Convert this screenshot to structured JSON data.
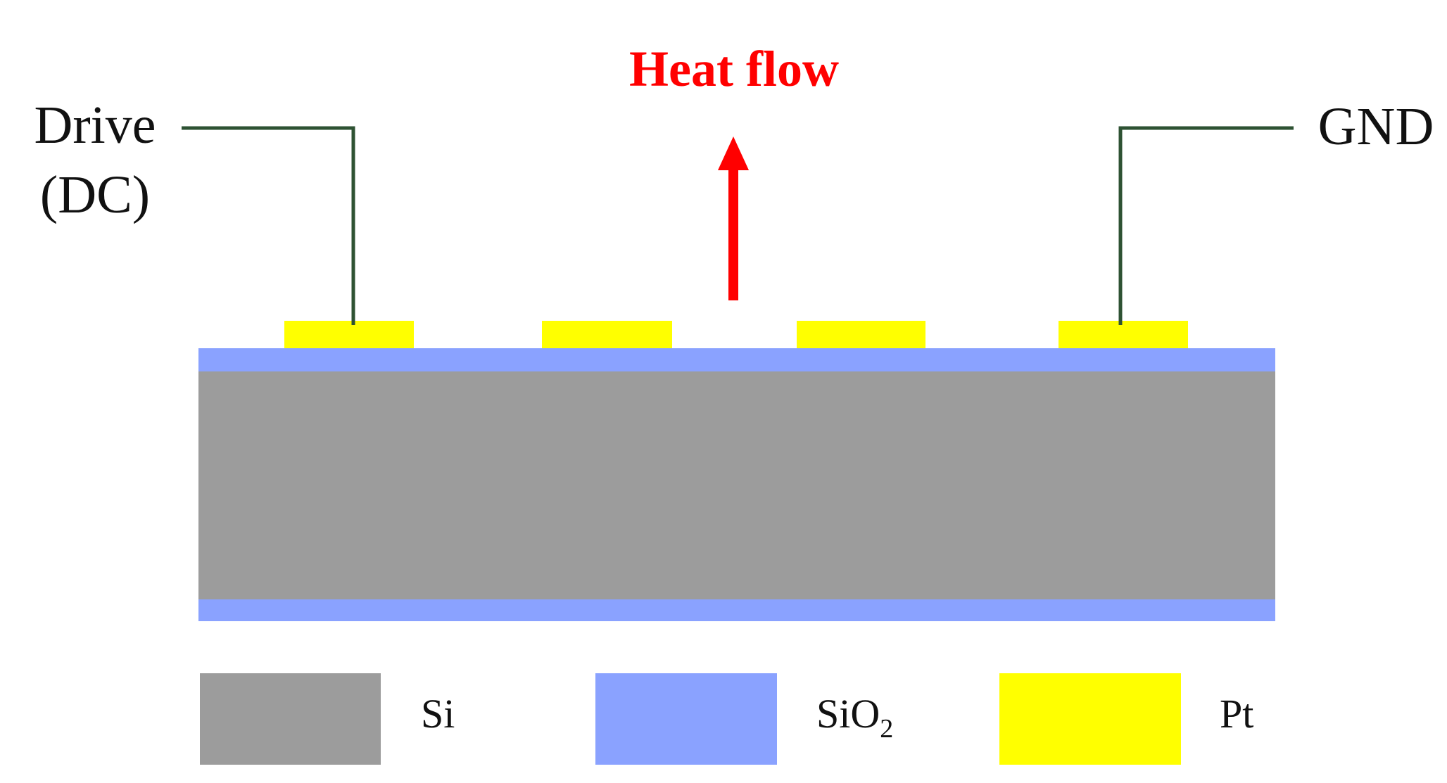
{
  "heat_flow": {
    "label": "Heat flow",
    "color": "#ff0000"
  },
  "terminals": {
    "drive_line1": "Drive",
    "drive_line2": "(DC)",
    "ground": "GND",
    "wire_color": "#2e5233"
  },
  "legend": {
    "si": {
      "label": "Si",
      "color": "#9c9c9c"
    },
    "sio2": {
      "label": "SiO",
      "subscript": "2",
      "color": "#8aa2ff"
    },
    "pt": {
      "label": "Pt",
      "color": "#ffff00"
    }
  }
}
